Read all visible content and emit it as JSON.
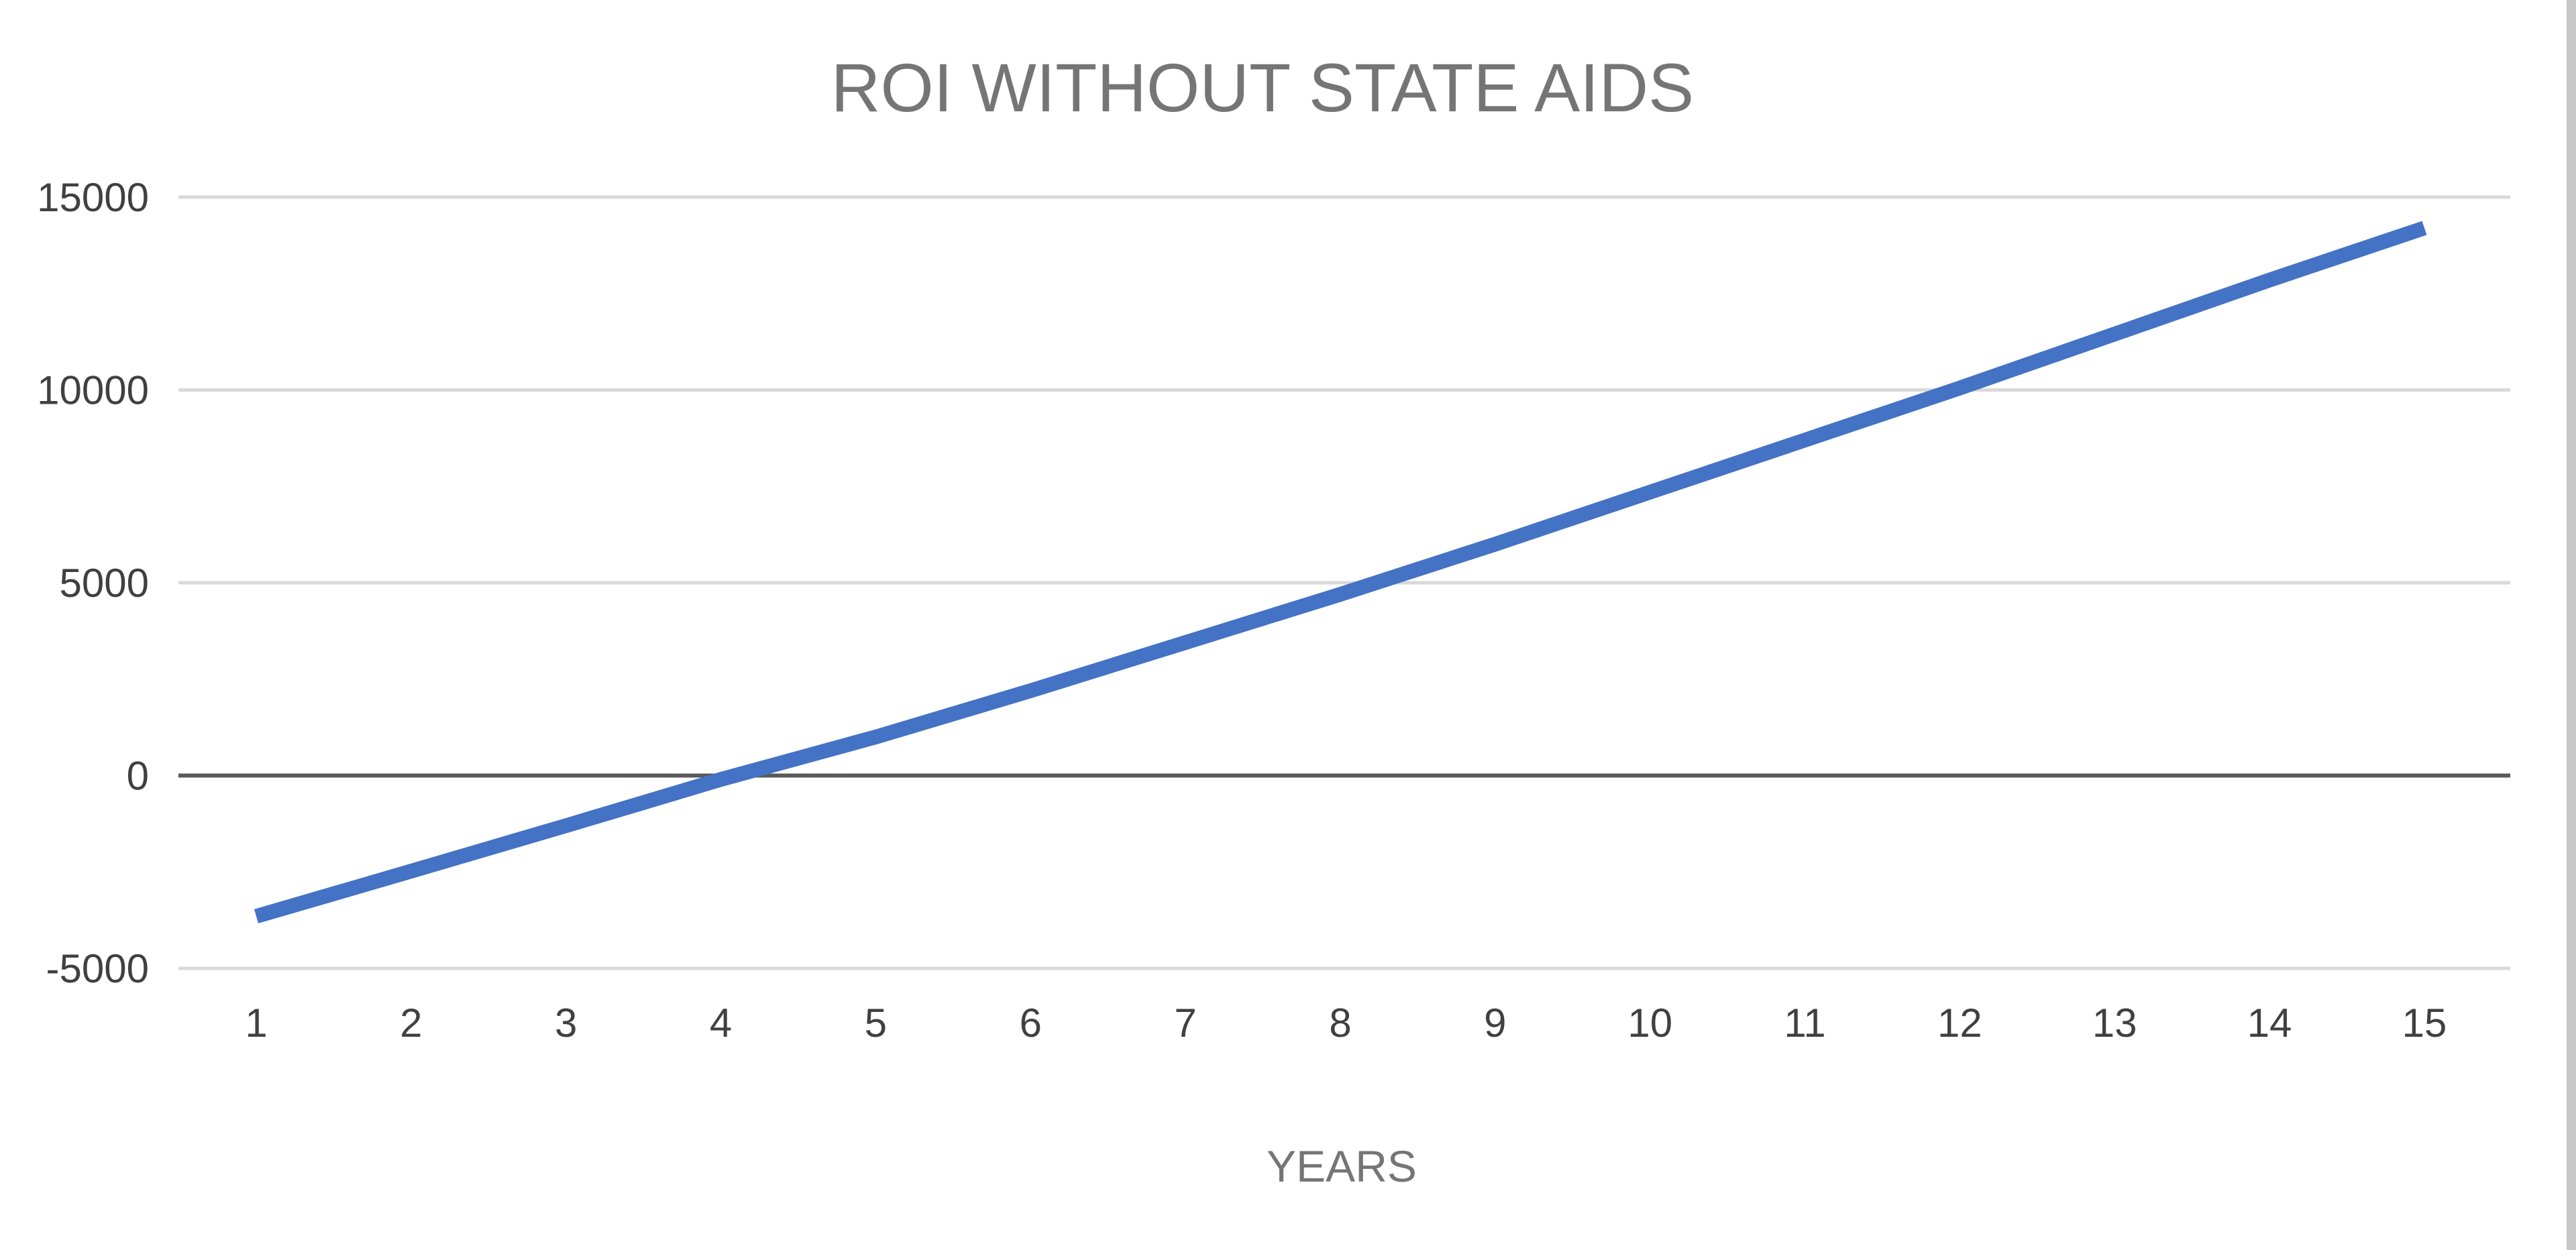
{
  "chart_data": {
    "type": "line",
    "title": "ROI WITHOUT STATE AIDS",
    "xlabel": "YEARS",
    "ylabel": "",
    "categories": [
      "1",
      "2",
      "3",
      "4",
      "5",
      "6",
      "7",
      "8",
      "9",
      "10",
      "11",
      "12",
      "13",
      "14",
      "15"
    ],
    "series": [
      {
        "values": [
          -3650,
          -2480,
          -1300,
          -100,
          1000,
          2200,
          3450,
          4700,
          6000,
          7350,
          8700,
          10050,
          11450,
          12850,
          14200
        ]
      }
    ],
    "ylim": [
      -5000,
      15000
    ],
    "yticks": [
      "-5000",
      "0",
      "5000",
      "10000",
      "15000"
    ],
    "grid": true,
    "legend": "none",
    "colors": {
      "line": "#4472C4",
      "gridline": "#d9d9d9",
      "zero_line": "#595959",
      "title": "#757575",
      "tick_label": "#404040"
    }
  }
}
